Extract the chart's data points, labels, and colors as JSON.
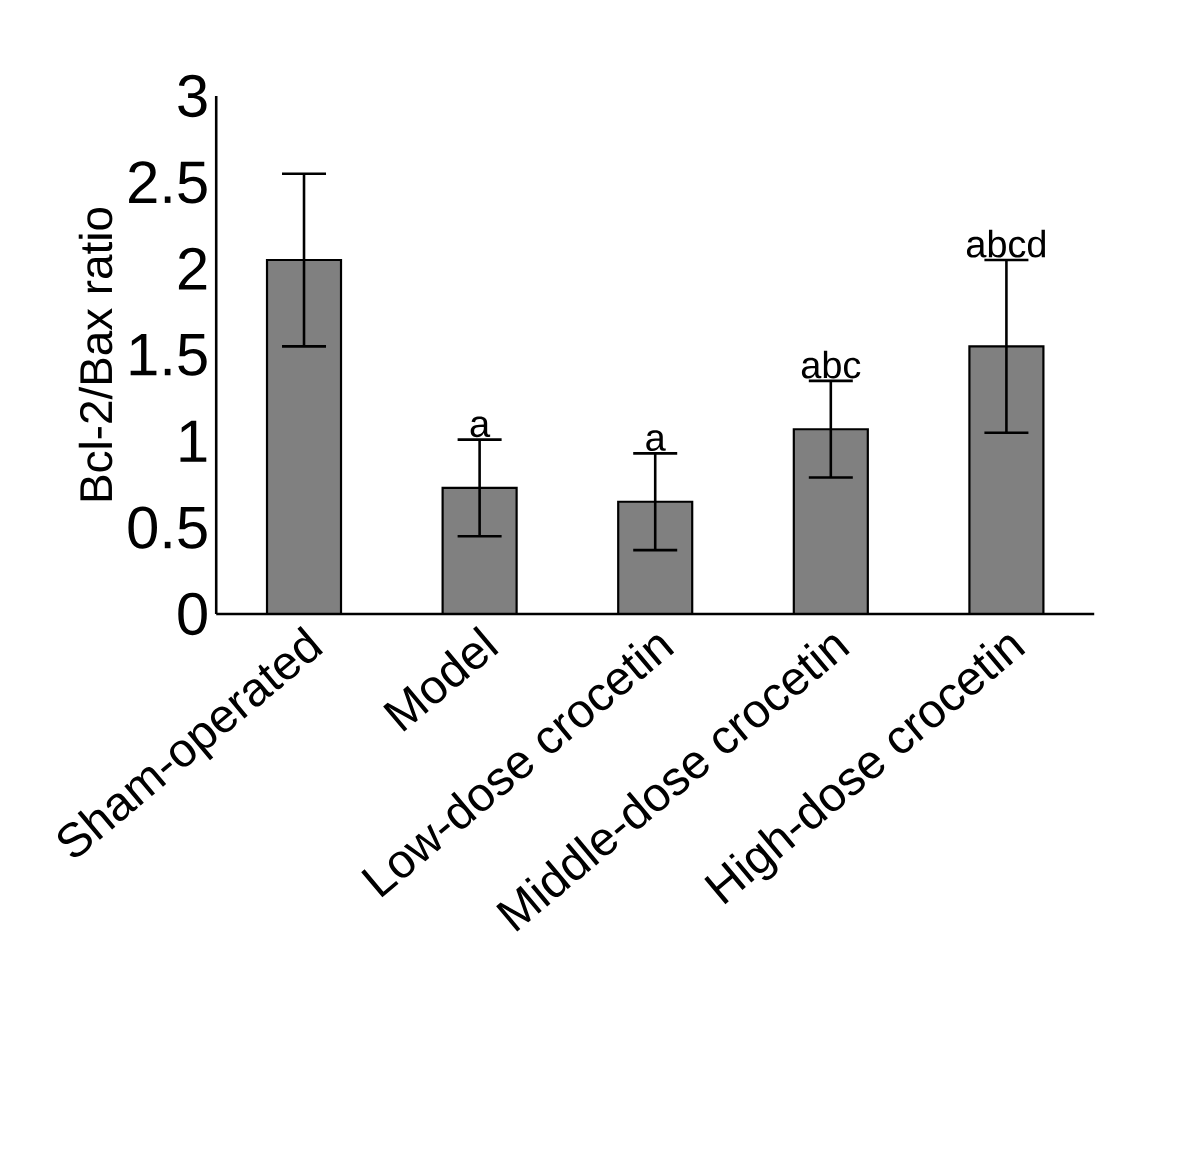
{
  "chart_data": {
    "type": "bar",
    "ylabel": "Bcl-2/Bax ratio",
    "categories": [
      "Sham-operated",
      "Model",
      "Low-dose crocetin",
      "Middle-dose crocetin",
      "High-dose crocetin"
    ],
    "values": [
      2.05,
      0.73,
      0.65,
      1.07,
      1.55
    ],
    "errors": [
      0.5,
      0.28,
      0.28,
      0.28,
      0.5
    ],
    "color": "#808080",
    "ylim": [
      0,
      3
    ],
    "yticks": [
      0,
      0.5,
      1,
      1.5,
      2,
      2.5,
      3
    ],
    "annotations": [
      {
        "text": "a",
        "x": "Model",
        "y": 1.01
      },
      {
        "text": "a",
        "x": "Low-dose crocetin",
        "y": 0.93
      },
      {
        "text": "abc",
        "x": "Middle-dose crocetin",
        "y": 1.35
      },
      {
        "text": "abcd",
        "x": "High-dose crocetin",
        "y": 2.05
      }
    ]
  }
}
